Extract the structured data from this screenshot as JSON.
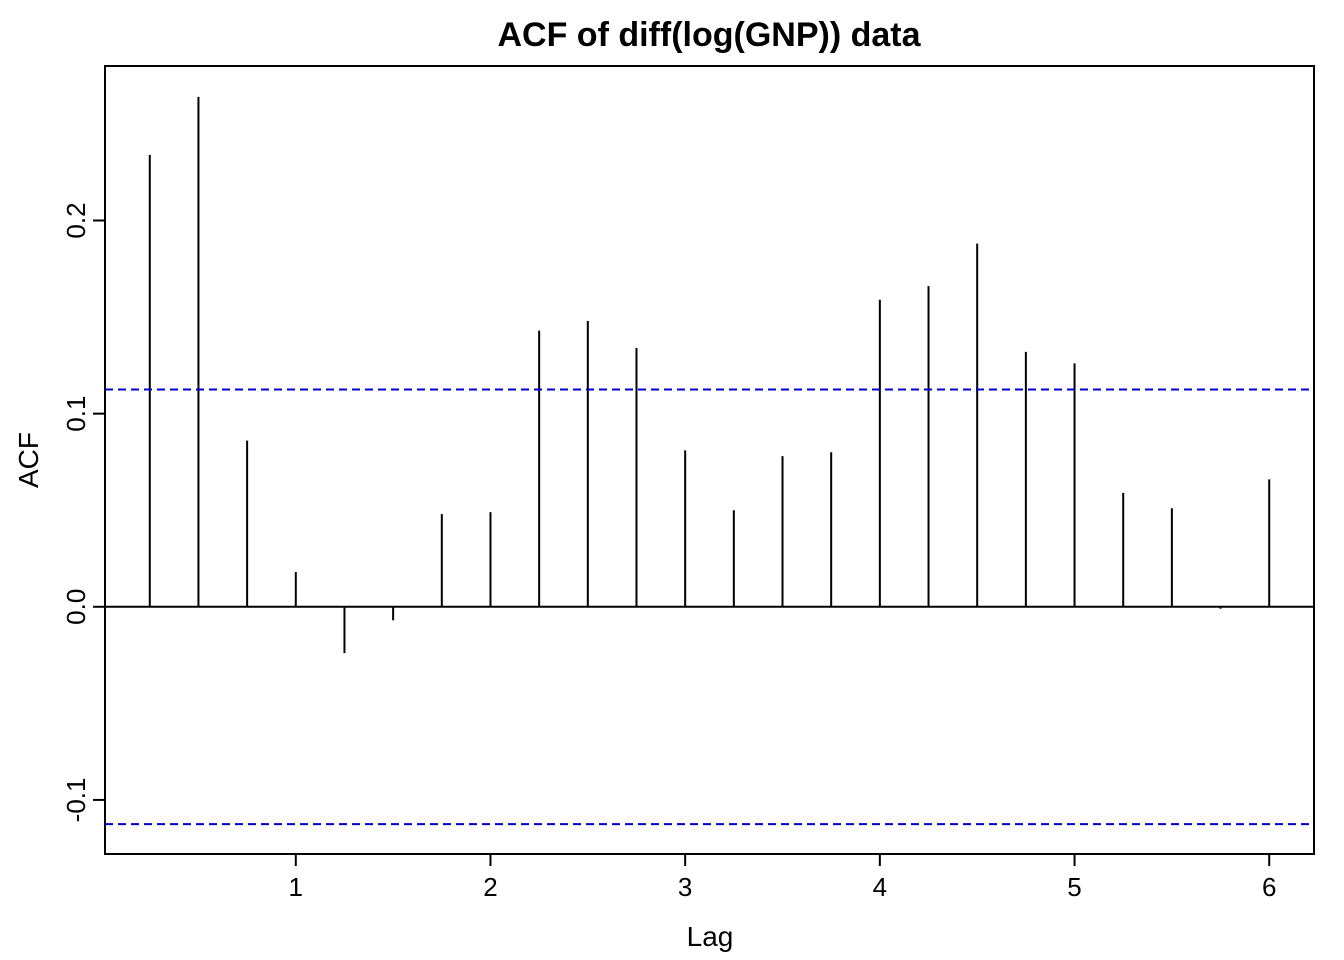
{
  "chart_data": {
    "type": "bar",
    "title": "ACF of diff(log(GNP)) data",
    "xlabel": "Lag",
    "ylabel": "ACF",
    "xlim": [
      0.02,
      6.23
    ],
    "ylim": [
      -0.128,
      0.28
    ],
    "x_ticks": [
      1,
      2,
      3,
      4,
      5,
      6
    ],
    "x_tick_labels": [
      "1",
      "2",
      "3",
      "4",
      "5",
      "6"
    ],
    "y_ticks": [
      -0.1,
      0.0,
      0.1,
      0.2
    ],
    "y_tick_labels": [
      "-0.1",
      "0.0",
      "0.1",
      "0.2"
    ],
    "zero_line": 0,
    "confidence_bound": 0.1125,
    "confidence_color": "#0000CC",
    "bar_color": "#000000",
    "grid": false,
    "x": [
      0.25,
      0.5,
      0.75,
      1.0,
      1.25,
      1.5,
      1.75,
      2.0,
      2.25,
      2.5,
      2.75,
      3.0,
      3.25,
      3.5,
      3.75,
      4.0,
      4.25,
      4.5,
      4.75,
      5.0,
      5.25,
      5.5,
      5.75,
      6.0
    ],
    "values": [
      0.234,
      0.264,
      0.086,
      0.018,
      -0.024,
      -0.007,
      0.048,
      0.049,
      0.143,
      0.148,
      0.134,
      0.081,
      0.05,
      0.078,
      0.08,
      0.159,
      0.166,
      0.188,
      0.132,
      0.126,
      0.059,
      0.051,
      -0.001,
      0.066
    ]
  }
}
